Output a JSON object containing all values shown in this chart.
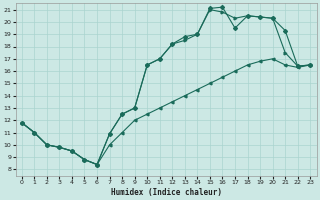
{
  "xlabel": "Humidex (Indice chaleur)",
  "bg_color": "#cce8e4",
  "line_color": "#1a6b5a",
  "grid_color": "#aad4cf",
  "xlim_min": -0.5,
  "xlim_max": 23.5,
  "ylim_min": 7.5,
  "ylim_max": 21.5,
  "xticks": [
    0,
    1,
    2,
    3,
    4,
    5,
    6,
    7,
    8,
    9,
    10,
    11,
    12,
    13,
    14,
    15,
    16,
    17,
    18,
    19,
    20,
    21,
    22,
    23
  ],
  "yticks": [
    8,
    9,
    10,
    11,
    12,
    13,
    14,
    15,
    16,
    17,
    18,
    19,
    20,
    21
  ],
  "line1_x": [
    0,
    1,
    2,
    3,
    4,
    5,
    6,
    7,
    8,
    9,
    10,
    11,
    12,
    13,
    14,
    15,
    16,
    17,
    18,
    19,
    20,
    21,
    22,
    23
  ],
  "line1_y": [
    11.8,
    11,
    10,
    9.8,
    9.5,
    8.8,
    8.4,
    10.9,
    12.5,
    13.0,
    16.5,
    17.0,
    18.2,
    18.8,
    19.0,
    21.1,
    21.2,
    19.5,
    20.5,
    20.4,
    20.3,
    19.3,
    16.4,
    16.5
  ],
  "line2_x": [
    0,
    1,
    2,
    3,
    4,
    5,
    6,
    7,
    8,
    9,
    10,
    11,
    12,
    13,
    14,
    15,
    16,
    17,
    18,
    19,
    20,
    21,
    22,
    23
  ],
  "line2_y": [
    11.8,
    11,
    10,
    9.8,
    9.5,
    8.8,
    8.4,
    10.9,
    12.5,
    13.0,
    16.5,
    17.0,
    18.2,
    18.5,
    19.0,
    21.0,
    20.8,
    20.3,
    20.5,
    20.4,
    20.3,
    17.5,
    16.4,
    16.5
  ],
  "line3_x": [
    0,
    1,
    2,
    3,
    4,
    5,
    6,
    7,
    8,
    9,
    10,
    11,
    12,
    13,
    14,
    15,
    16,
    17,
    18,
    19,
    20,
    21,
    22,
    23
  ],
  "line3_y": [
    11.8,
    11,
    10,
    9.8,
    9.5,
    8.8,
    8.4,
    10.0,
    11.0,
    12.0,
    12.5,
    13.0,
    13.5,
    14.0,
    14.5,
    15.0,
    15.5,
    16.0,
    16.5,
    16.8,
    17.0,
    16.5,
    16.3,
    16.5
  ]
}
